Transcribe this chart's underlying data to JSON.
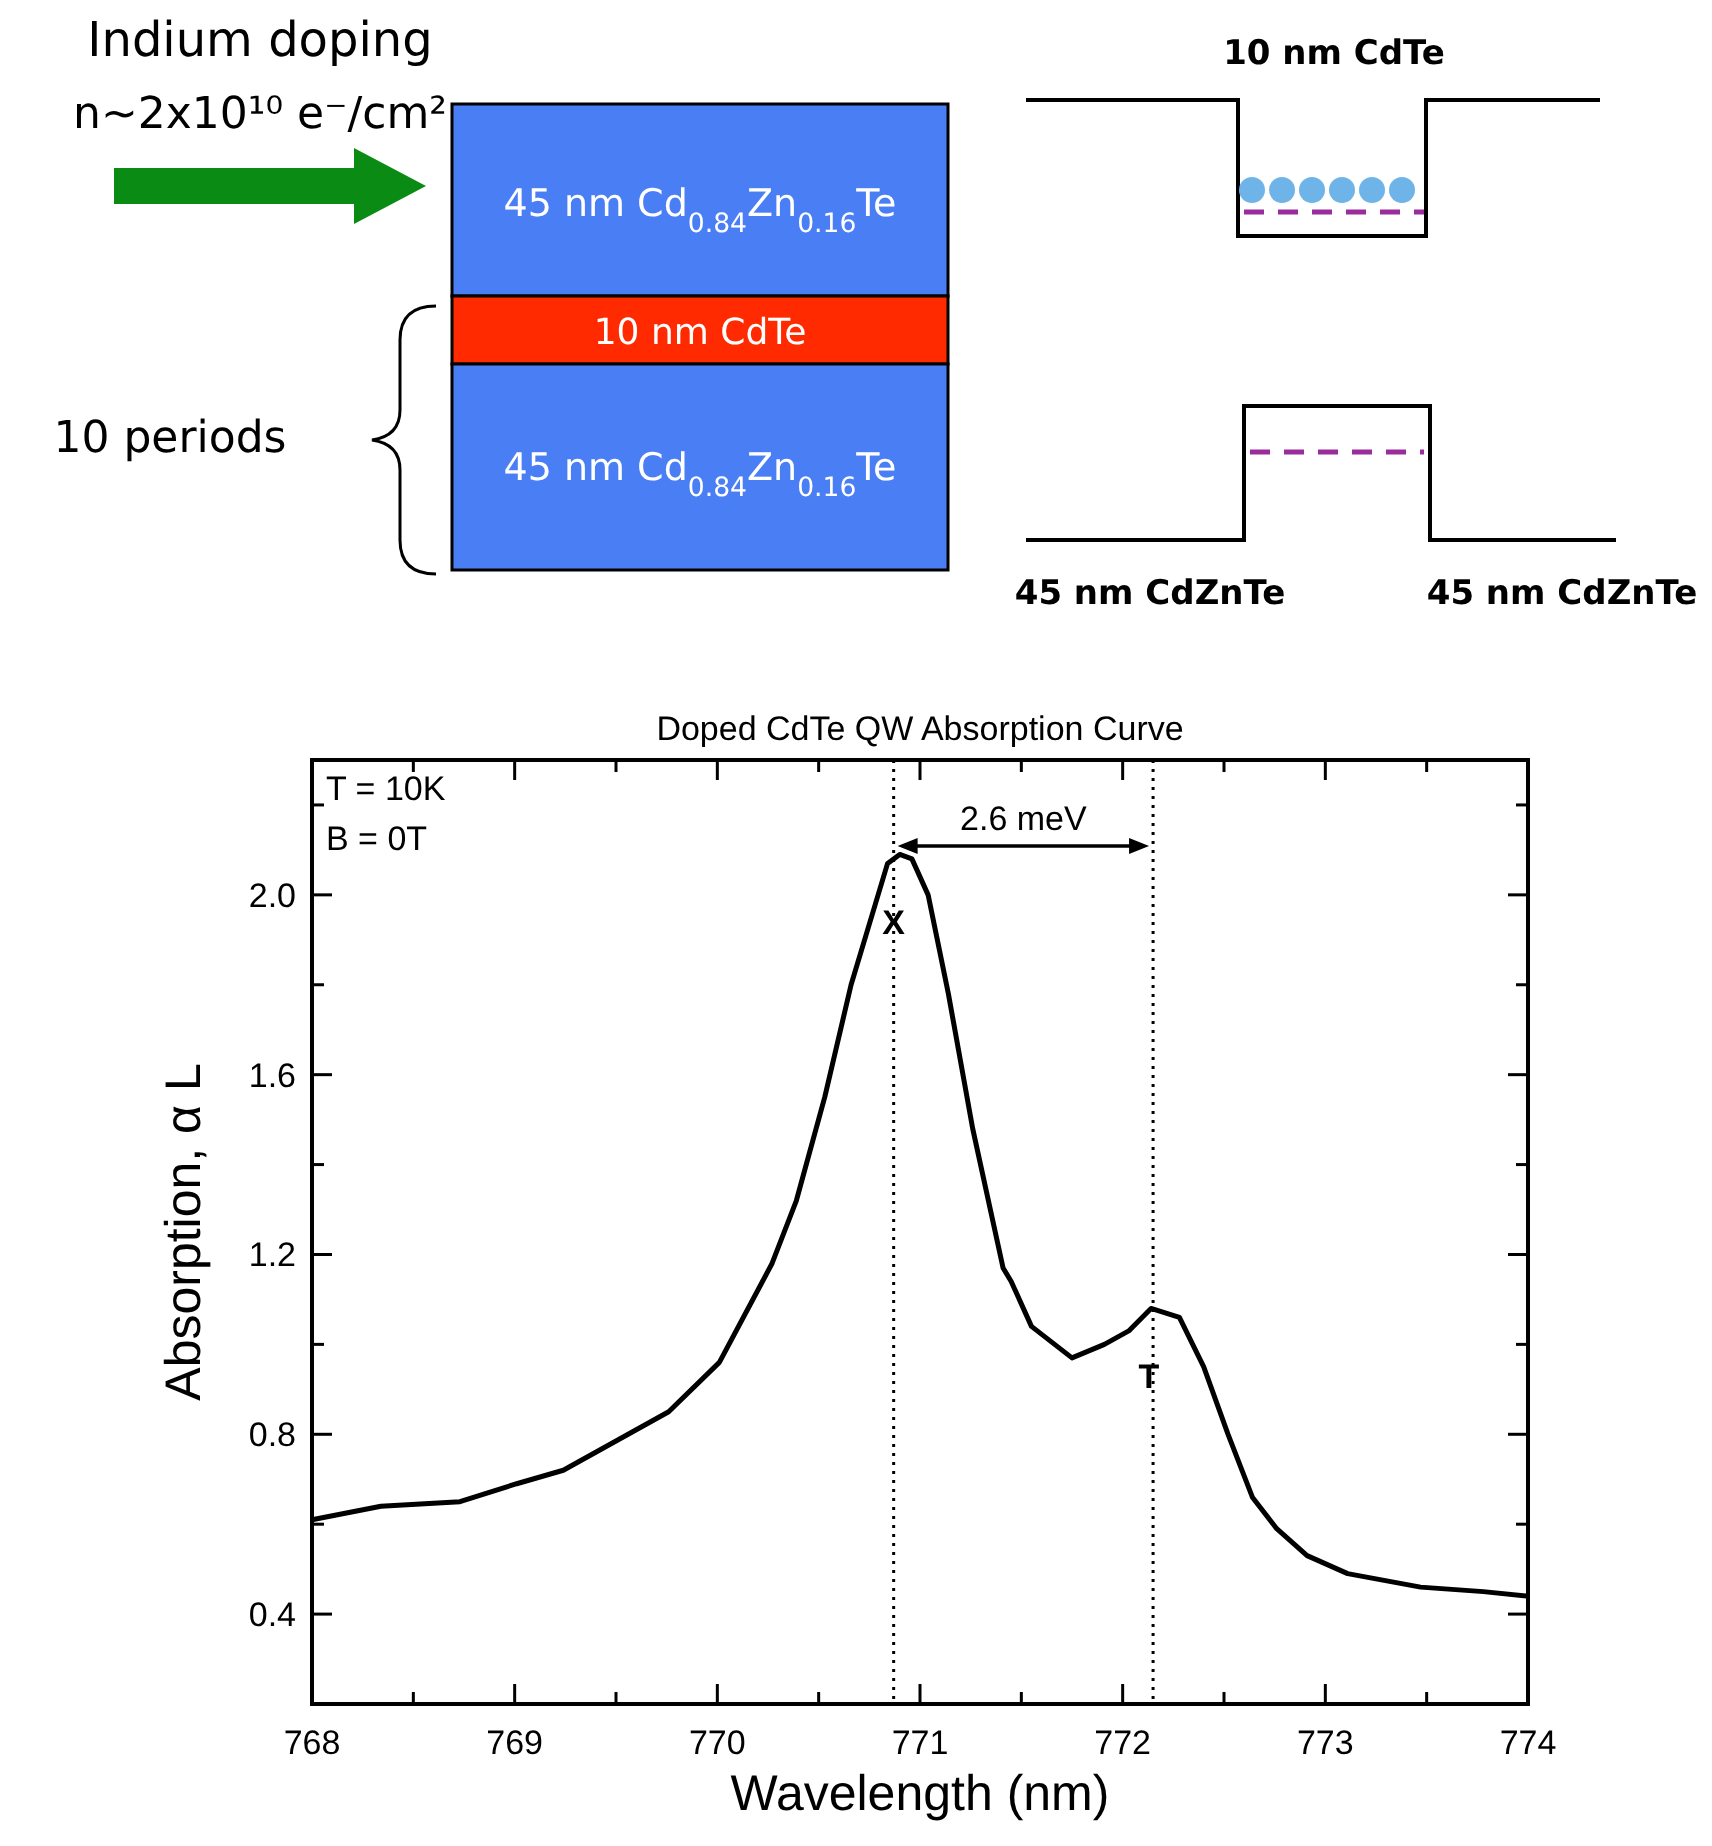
{
  "chart_data": [
    {
      "type": "other",
      "annotations": [
        "Indium doping",
        "n~2x10¹⁰ e⁻/cm²",
        "45 nm Cd$_{0.84}$Zn$_{0.16}$Te",
        "10 nm CdTe",
        "45 nm Cd$_{0.84}$Zn$_{0.16}$Te",
        "10 periods",
        "10 nm CdTe",
        "45 nm CdZnTe",
        "45 nm CdZnTe"
      ]
    },
    {
      "type": "line",
      "title": "Doped CdTe QW Absorption Curve",
      "xlabel": "Wavelength (nm)",
      "ylabel": "Absorption, α L",
      "x": [
        768,
        768.34,
        768.73,
        769.01,
        769.24,
        769.52,
        769.76,
        770.01,
        770.27,
        770.39,
        770.53,
        770.66,
        770.78,
        770.84,
        770.9,
        770.96,
        771.04,
        771.14,
        771.26,
        771.41,
        771.45,
        771.55,
        771.75,
        771.91,
        772.03,
        772.14,
        772.28,
        772.4,
        772.52,
        772.64,
        772.76,
        772.91,
        773.11,
        773.47,
        773.78,
        774
      ],
      "series": [
        {
          "color": "#000000",
          "values": [
            0.61,
            0.64,
            0.65,
            0.69,
            0.72,
            0.79,
            0.85,
            0.96,
            1.18,
            1.32,
            1.55,
            1.8,
            1.98,
            2.07,
            2.09,
            2.08,
            2.0,
            1.78,
            1.48,
            1.17,
            1.14,
            1.04,
            0.97,
            1.0,
            1.03,
            1.08,
            1.06,
            0.95,
            0.8,
            0.66,
            0.59,
            0.53,
            0.49,
            0.46,
            0.45,
            0.44
          ]
        }
      ],
      "xlim": [
        768,
        774
      ],
      "xticks": [
        768,
        {
          "value": 768.5,
          "label": null
        },
        769,
        {
          "value": 769.5,
          "label": null
        },
        770,
        {
          "value": 770.5,
          "label": null
        },
        771,
        {
          "value": 771.5,
          "label": null
        },
        772,
        {
          "value": 772.5,
          "label": null
        },
        773,
        {
          "value": 773.5,
          "label": null
        },
        774
      ],
      "ylim": [
        0.2,
        2.3
      ],
      "yticks": [
        {
          "value": 0.2,
          "label": null
        },
        {
          "value": 0.4,
          "label": "0.4"
        },
        {
          "value": 0.6,
          "label": null
        },
        {
          "value": 0.8,
          "label": "0.8"
        },
        {
          "value": 1.0,
          "label": null
        },
        {
          "value": 1.2,
          "label": "1.2"
        },
        {
          "value": 1.4,
          "label": null
        },
        {
          "value": 1.6,
          "label": "1.6"
        },
        {
          "value": 1.8,
          "label": null
        },
        {
          "value": 2.0,
          "label": "2.0"
        },
        {
          "value": 2.2,
          "label": null
        }
      ],
      "grid": false,
      "line_style": "solid",
      "marker": "none",
      "ref_lines": [
        {
          "axis": "x",
          "value": 770.87,
          "line_style": "dotted"
        },
        {
          "axis": "x",
          "value": 772.15,
          "line_style": "dotted"
        }
      ],
      "annotations": [
        "T = 10K",
        "B = 0T",
        "2.6 meV",
        {
          "text": "X",
          "x": 770.87,
          "y": 2.09
        },
        {
          "text": "T",
          "x": 772.13,
          "y": 1.08
        }
      ]
    }
  ]
}
